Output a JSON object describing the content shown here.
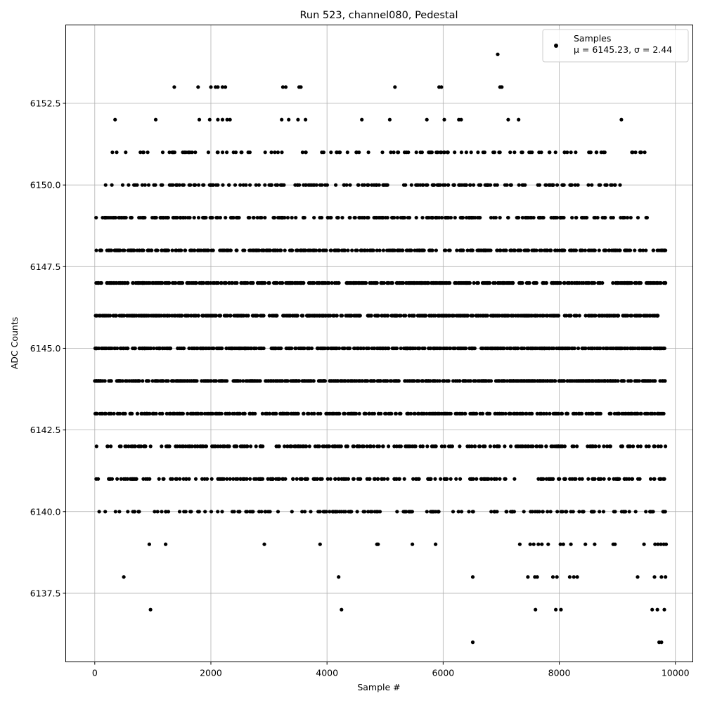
{
  "chart_data": {
    "type": "scatter",
    "title": "Run 523, channel080, Pedestal",
    "xlabel": "Sample #",
    "ylabel": "ADC Counts",
    "xlim": [
      -500,
      10300
    ],
    "ylim": [
      6135.4,
      6154.9
    ],
    "xticks": [
      0,
      2000,
      4000,
      6000,
      8000,
      10000
    ],
    "xtick_labels": [
      "0",
      "2000",
      "4000",
      "6000",
      "8000",
      "10000"
    ],
    "yticks": [
      6137.5,
      6140.0,
      6142.5,
      6145.0,
      6147.5,
      6150.0,
      6152.5
    ],
    "ytick_labels": [
      "6137.5",
      "6140.0",
      "6142.5",
      "6145.0",
      "6147.5",
      "6150.0",
      "6152.5"
    ],
    "grid": true,
    "legend_placement": "top-right",
    "marker_color": "#000000",
    "series": [
      {
        "name": "Samples",
        "stats_label": "μ = 6145.23, σ = 2.44",
        "level_values": [
          6136,
          6137,
          6138,
          6139,
          6140,
          6141,
          6142,
          6143,
          6144,
          6145,
          6146,
          6147,
          6148,
          6149,
          6150,
          6151,
          6152,
          6153,
          6154
        ],
        "x_range": [
          0,
          9840
        ],
        "points": [
          {
            "x": 6940,
            "y": 6154
          },
          {
            "x": 1370,
            "y": 6153
          },
          {
            "x": 1780,
            "y": 6153
          },
          {
            "x": 2000,
            "y": 6153
          },
          {
            "x": 2080,
            "y": 6153
          },
          {
            "x": 2120,
            "y": 6153
          },
          {
            "x": 2200,
            "y": 6153
          },
          {
            "x": 2250,
            "y": 6153
          },
          {
            "x": 3240,
            "y": 6153
          },
          {
            "x": 3290,
            "y": 6153
          },
          {
            "x": 3520,
            "y": 6153
          },
          {
            "x": 3550,
            "y": 6153
          },
          {
            "x": 5170,
            "y": 6153
          },
          {
            "x": 5930,
            "y": 6153
          },
          {
            "x": 5970,
            "y": 6153
          },
          {
            "x": 6980,
            "y": 6153
          },
          {
            "x": 7010,
            "y": 6153
          },
          {
            "x": 350,
            "y": 6152
          },
          {
            "x": 1050,
            "y": 6152
          },
          {
            "x": 1800,
            "y": 6152
          },
          {
            "x": 1980,
            "y": 6152
          },
          {
            "x": 2120,
            "y": 6152
          },
          {
            "x": 2200,
            "y": 6152
          },
          {
            "x": 2280,
            "y": 6152
          },
          {
            "x": 2330,
            "y": 6152
          },
          {
            "x": 3220,
            "y": 6152
          },
          {
            "x": 3340,
            "y": 6152
          },
          {
            "x": 3500,
            "y": 6152
          },
          {
            "x": 3630,
            "y": 6152
          },
          {
            "x": 4600,
            "y": 6152
          },
          {
            "x": 5080,
            "y": 6152
          },
          {
            "x": 5720,
            "y": 6152
          },
          {
            "x": 6020,
            "y": 6152
          },
          {
            "x": 6270,
            "y": 6152
          },
          {
            "x": 6310,
            "y": 6152
          },
          {
            "x": 7120,
            "y": 6152
          },
          {
            "x": 7300,
            "y": 6152
          },
          {
            "x": 9070,
            "y": 6152
          },
          {
            "x": 500,
            "y": 6138
          },
          {
            "x": 4200,
            "y": 6138
          },
          {
            "x": 6510,
            "y": 6138
          },
          {
            "x": 7460,
            "y": 6138
          },
          {
            "x": 7580,
            "y": 6138
          },
          {
            "x": 7620,
            "y": 6138
          },
          {
            "x": 7890,
            "y": 6138
          },
          {
            "x": 7960,
            "y": 6138
          },
          {
            "x": 8180,
            "y": 6138
          },
          {
            "x": 8250,
            "y": 6138
          },
          {
            "x": 8310,
            "y": 6138
          },
          {
            "x": 9350,
            "y": 6138
          },
          {
            "x": 9640,
            "y": 6138
          },
          {
            "x": 9760,
            "y": 6138
          },
          {
            "x": 9830,
            "y": 6138
          },
          {
            "x": 960,
            "y": 6137
          },
          {
            "x": 4250,
            "y": 6137
          },
          {
            "x": 7590,
            "y": 6137
          },
          {
            "x": 7940,
            "y": 6137
          },
          {
            "x": 8030,
            "y": 6137
          },
          {
            "x": 9600,
            "y": 6137
          },
          {
            "x": 9690,
            "y": 6137
          },
          {
            "x": 9810,
            "y": 6137
          },
          {
            "x": 6510,
            "y": 6136
          },
          {
            "x": 9720,
            "y": 6136
          },
          {
            "x": 9760,
            "y": 6136
          },
          {
            "x": 940,
            "y": 6139
          },
          {
            "x": 1220,
            "y": 6139
          },
          {
            "x": 2920,
            "y": 6139
          },
          {
            "x": 3880,
            "y": 6139
          },
          {
            "x": 4860,
            "y": 6139
          },
          {
            "x": 4880,
            "y": 6139
          },
          {
            "x": 5470,
            "y": 6139
          },
          {
            "x": 5870,
            "y": 6139
          },
          {
            "x": 7320,
            "y": 6139
          },
          {
            "x": 7500,
            "y": 6139
          },
          {
            "x": 7560,
            "y": 6139
          },
          {
            "x": 7640,
            "y": 6139
          },
          {
            "x": 7700,
            "y": 6139
          },
          {
            "x": 7810,
            "y": 6139
          },
          {
            "x": 8020,
            "y": 6139
          },
          {
            "x": 8070,
            "y": 6139
          },
          {
            "x": 8200,
            "y": 6139
          },
          {
            "x": 8450,
            "y": 6139
          },
          {
            "x": 8610,
            "y": 6139
          },
          {
            "x": 8930,
            "y": 6139
          },
          {
            "x": 8960,
            "y": 6139
          },
          {
            "x": 9460,
            "y": 6139
          },
          {
            "x": 9650,
            "y": 6139
          },
          {
            "x": 9700,
            "y": 6139
          },
          {
            "x": 9750,
            "y": 6139
          },
          {
            "x": 9800,
            "y": 6139
          },
          {
            "x": 9840,
            "y": 6139
          }
        ],
        "level_density": [
          {
            "y": 6140,
            "x_start": 0,
            "x_end": 9840,
            "count": 170
          },
          {
            "y": 6141,
            "x_start": 0,
            "x_end": 9840,
            "count": 230
          },
          {
            "y": 6142,
            "x_start": 0,
            "x_end": 9840,
            "count": 260
          },
          {
            "y": 6143,
            "x_start": 0,
            "x_end": 9840,
            "count": 380
          },
          {
            "y": 6144,
            "x_start": 0,
            "x_end": 9840,
            "count": 540
          },
          {
            "y": 6145,
            "x_start": 0,
            "x_end": 9840,
            "count": 560
          },
          {
            "y": 6146,
            "x_start": 0,
            "x_end": 9720,
            "count": 540
          },
          {
            "y": 6147,
            "x_start": 0,
            "x_end": 9840,
            "count": 500
          },
          {
            "y": 6148,
            "x_start": 0,
            "x_end": 9840,
            "count": 390
          },
          {
            "y": 6149,
            "x_start": 0,
            "x_end": 9530,
            "count": 250
          },
          {
            "y": 6150,
            "x_start": 160,
            "x_end": 9060,
            "count": 200
          },
          {
            "y": 6151,
            "x_start": 240,
            "x_end": 9490,
            "count": 120
          }
        ]
      }
    ]
  }
}
